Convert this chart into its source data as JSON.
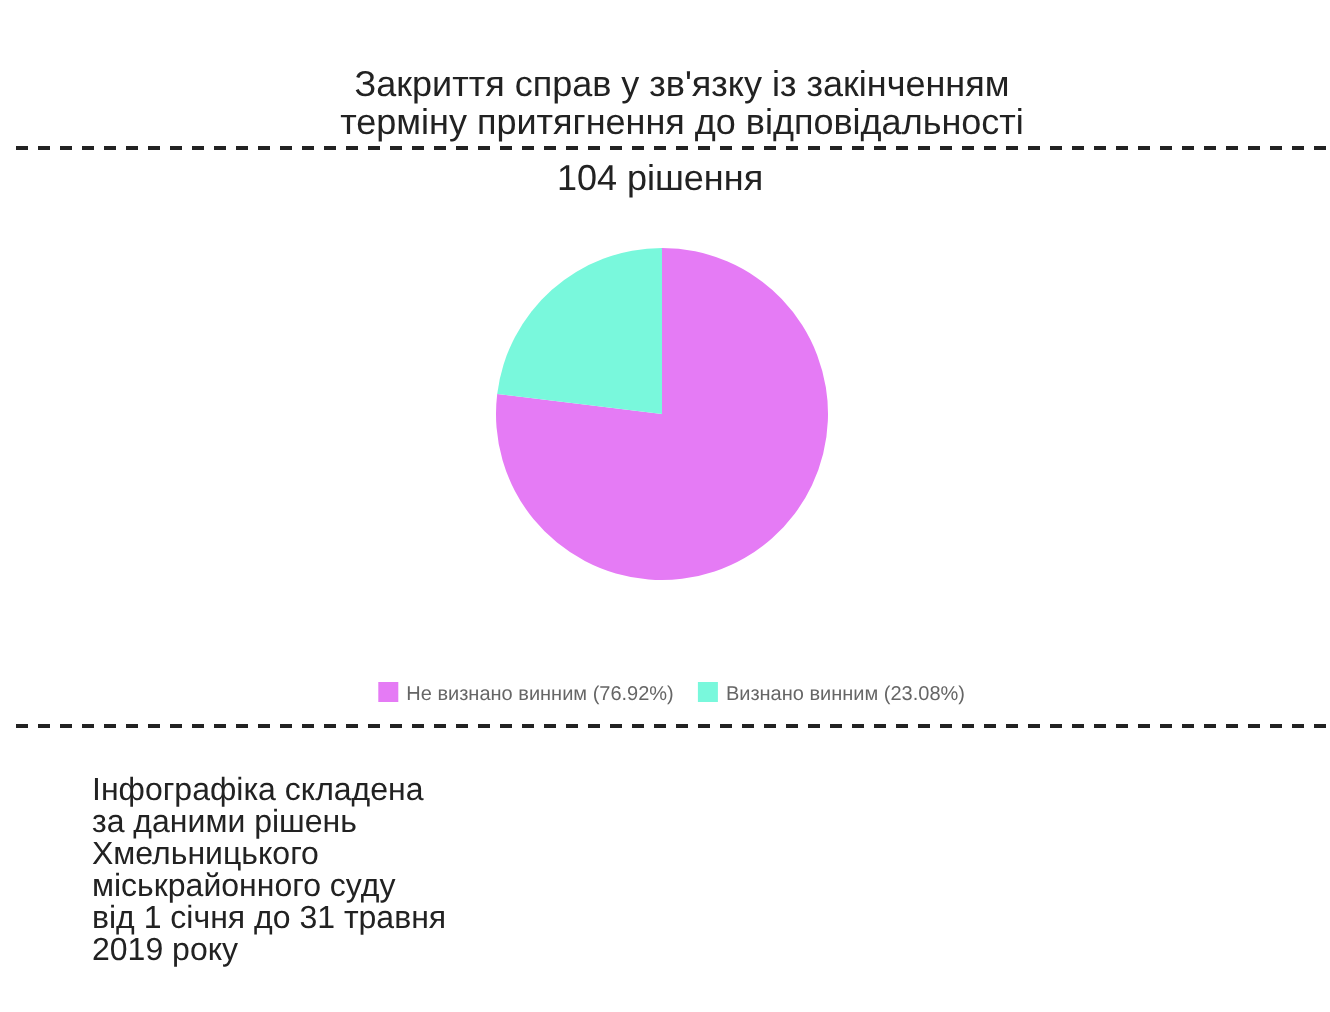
{
  "chart_data": {
    "type": "pie",
    "title": "Закриття справ у зв'язку із закінченням\nтерміну притягнення до відповідальності",
    "subtitle": "104 рішення",
    "categories": [
      "Не визнано винним (76.92%)",
      "Визнано винним (23.08%)"
    ],
    "values": [
      76.92,
      23.08
    ],
    "colors": [
      "#e57bf5",
      "#79f8dc"
    ],
    "legend": "bottom",
    "annotations": [
      "Інфографіка складена\nза даними рішень\nХмельницького\nміськрайонного суду\nвід 1 січня до 31 травня\n2019 року"
    ]
  }
}
